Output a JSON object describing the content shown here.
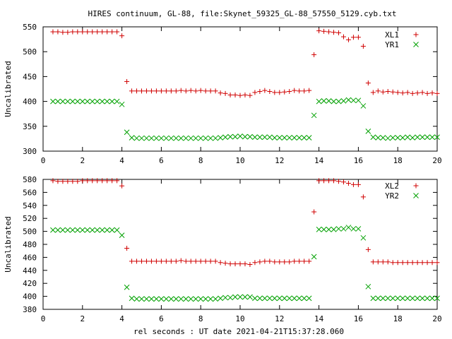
{
  "title": "HIRES continuum, GL-88, file:Skynet_59325_GL-88_57550_5129.cyb.txt",
  "xlabel": "rel seconds : UT date 2021-04-21T15:37:28.060",
  "colors": {
    "red": "#d00000",
    "green": "#00a000"
  },
  "chart_data": [
    {
      "type": "scatter",
      "ylabel": "Uncalibrated",
      "xlim": [
        0,
        20
      ],
      "ylim": [
        300,
        550
      ],
      "xticks": [
        0,
        2,
        4,
        6,
        8,
        10,
        12,
        14,
        16,
        18,
        20
      ],
      "yticks": [
        300,
        350,
        400,
        450,
        500,
        550
      ],
      "legend_position": "top-right",
      "series": [
        {
          "name": "XL1",
          "marker": "plus",
          "color": "#d00000",
          "x": [
            0.5,
            0.75,
            1.0,
            1.25,
            1.5,
            1.75,
            2.0,
            2.25,
            2.5,
            2.75,
            3.0,
            3.25,
            3.5,
            3.75,
            4.0,
            4.25,
            4.5,
            4.75,
            5.0,
            5.25,
            5.5,
            5.75,
            6.0,
            6.25,
            6.5,
            6.75,
            7.0,
            7.25,
            7.5,
            7.75,
            8.0,
            8.25,
            8.5,
            8.75,
            9.0,
            9.25,
            9.5,
            9.75,
            10.0,
            10.25,
            10.5,
            10.75,
            11.0,
            11.25,
            11.5,
            11.75,
            12.0,
            12.25,
            12.5,
            12.75,
            13.0,
            13.25,
            13.5,
            13.75,
            14.0,
            14.25,
            14.5,
            14.75,
            15.0,
            15.25,
            15.5,
            15.75,
            16.0,
            16.25,
            16.5,
            16.75,
            17.0,
            17.25,
            17.5,
            17.75,
            18.0,
            18.25,
            18.5,
            18.75,
            19.0,
            19.25,
            19.5,
            19.75,
            20.0
          ],
          "y": [
            540,
            540,
            539,
            539,
            540,
            540,
            540,
            540,
            540,
            540,
            540,
            540,
            540,
            540,
            532,
            440,
            421,
            421,
            421,
            421,
            421,
            421,
            421,
            421,
            421,
            421,
            422,
            421,
            422,
            421,
            422,
            421,
            421,
            421,
            417,
            416,
            413,
            413,
            412,
            413,
            412,
            418,
            420,
            422,
            420,
            418,
            418,
            419,
            420,
            422,
            421,
            421,
            422,
            494,
            542,
            541,
            540,
            539,
            538,
            530,
            524,
            529,
            529,
            511,
            437,
            418,
            421,
            419,
            420,
            419,
            418,
            417,
            418,
            416,
            417,
            418,
            416,
            417,
            416
          ]
        },
        {
          "name": "YR1",
          "marker": "x",
          "color": "#00a000",
          "x": [
            0.5,
            0.75,
            1.0,
            1.25,
            1.5,
            1.75,
            2.0,
            2.25,
            2.5,
            2.75,
            3.0,
            3.25,
            3.5,
            3.75,
            4.0,
            4.25,
            4.5,
            4.75,
            5.0,
            5.25,
            5.5,
            5.75,
            6.0,
            6.25,
            6.5,
            6.75,
            7.0,
            7.25,
            7.5,
            7.75,
            8.0,
            8.25,
            8.5,
            8.75,
            9.0,
            9.25,
            9.5,
            9.75,
            10.0,
            10.25,
            10.5,
            10.75,
            11.0,
            11.25,
            11.5,
            11.75,
            12.0,
            12.25,
            12.5,
            12.75,
            13.0,
            13.25,
            13.5,
            13.75,
            14.0,
            14.25,
            14.5,
            14.75,
            15.0,
            15.25,
            15.5,
            15.75,
            16.0,
            16.25,
            16.5,
            16.75,
            17.0,
            17.25,
            17.5,
            17.75,
            18.0,
            18.25,
            18.5,
            18.75,
            19.0,
            19.25,
            19.5,
            19.75,
            20.0
          ],
          "y": [
            400,
            400,
            400,
            400,
            400,
            400,
            400,
            400,
            400,
            400,
            400,
            400,
            400,
            400,
            394,
            338,
            327,
            326,
            326,
            326,
            326,
            326,
            326,
            326,
            326,
            326,
            326,
            326,
            326,
            326,
            326,
            326,
            326,
            326,
            327,
            328,
            329,
            329,
            330,
            329,
            329,
            328,
            328,
            328,
            328,
            327,
            327,
            327,
            327,
            327,
            327,
            327,
            327,
            372,
            400,
            401,
            401,
            400,
            400,
            401,
            403,
            402,
            402,
            391,
            340,
            328,
            327,
            327,
            326,
            327,
            327,
            327,
            328,
            327,
            328,
            328,
            328,
            328,
            328
          ]
        }
      ]
    },
    {
      "type": "scatter",
      "ylabel": "Uncalibrated",
      "xlim": [
        0,
        20
      ],
      "ylim": [
        380,
        580
      ],
      "xticks": [
        0,
        2,
        4,
        6,
        8,
        10,
        12,
        14,
        16,
        18,
        20
      ],
      "yticks": [
        380,
        400,
        420,
        440,
        460,
        480,
        500,
        520,
        540,
        560,
        580
      ],
      "legend_position": "top-right",
      "series": [
        {
          "name": "XL2",
          "marker": "plus",
          "color": "#d00000",
          "x": [
            0.5,
            0.75,
            1.0,
            1.25,
            1.5,
            1.75,
            2.0,
            2.25,
            2.5,
            2.75,
            3.0,
            3.25,
            3.5,
            3.75,
            4.0,
            4.25,
            4.5,
            4.75,
            5.0,
            5.25,
            5.5,
            5.75,
            6.0,
            6.25,
            6.5,
            6.75,
            7.0,
            7.25,
            7.5,
            7.75,
            8.0,
            8.25,
            8.5,
            8.75,
            9.0,
            9.25,
            9.5,
            9.75,
            10.0,
            10.25,
            10.5,
            10.75,
            11.0,
            11.25,
            11.5,
            11.75,
            12.0,
            12.25,
            12.5,
            12.75,
            13.0,
            13.25,
            13.5,
            13.75,
            14.0,
            14.25,
            14.5,
            14.75,
            15.0,
            15.25,
            15.5,
            15.75,
            16.0,
            16.25,
            16.5,
            16.75,
            17.0,
            17.25,
            17.5,
            17.75,
            18.0,
            18.25,
            18.5,
            18.75,
            19.0,
            19.25,
            19.5,
            19.75,
            20.0
          ],
          "y": [
            578,
            577,
            577,
            577,
            577,
            577,
            578,
            578,
            578,
            578,
            578,
            578,
            578,
            578,
            570,
            474,
            454,
            454,
            454,
            454,
            454,
            454,
            454,
            454,
            454,
            454,
            455,
            454,
            454,
            454,
            454,
            454,
            454,
            454,
            452,
            451,
            450,
            450,
            450,
            450,
            449,
            452,
            453,
            454,
            454,
            453,
            453,
            453,
            453,
            454,
            454,
            454,
            454,
            530,
            578,
            578,
            578,
            578,
            577,
            576,
            574,
            572,
            572,
            553,
            472,
            453,
            453,
            453,
            453,
            452,
            452,
            452,
            452,
            452,
            452,
            452,
            452,
            452,
            452
          ]
        },
        {
          "name": "YR2",
          "marker": "x",
          "color": "#00a000",
          "x": [
            0.5,
            0.75,
            1.0,
            1.25,
            1.5,
            1.75,
            2.0,
            2.25,
            2.5,
            2.75,
            3.0,
            3.25,
            3.5,
            3.75,
            4.0,
            4.25,
            4.5,
            4.75,
            5.0,
            5.25,
            5.5,
            5.75,
            6.0,
            6.25,
            6.5,
            6.75,
            7.0,
            7.25,
            7.5,
            7.75,
            8.0,
            8.25,
            8.5,
            8.75,
            9.0,
            9.25,
            9.5,
            9.75,
            10.0,
            10.25,
            10.5,
            10.75,
            11.0,
            11.25,
            11.5,
            11.75,
            12.0,
            12.25,
            12.5,
            12.75,
            13.0,
            13.25,
            13.5,
            13.75,
            14.0,
            14.25,
            14.5,
            14.75,
            15.0,
            15.25,
            15.5,
            15.75,
            16.0,
            16.25,
            16.5,
            16.75,
            17.0,
            17.25,
            17.5,
            17.75,
            18.0,
            18.25,
            18.5,
            18.75,
            19.0,
            19.25,
            19.5,
            19.75,
            20.0
          ],
          "y": [
            502,
            502,
            502,
            502,
            502,
            502,
            502,
            502,
            502,
            502,
            502,
            502,
            502,
            502,
            494,
            414,
            397,
            396,
            396,
            396,
            396,
            396,
            396,
            396,
            396,
            396,
            396,
            396,
            396,
            396,
            396,
            396,
            396,
            396,
            397,
            398,
            398,
            399,
            399,
            399,
            399,
            397,
            397,
            397,
            397,
            397,
            397,
            397,
            397,
            397,
            397,
            397,
            397,
            461,
            503,
            503,
            503,
            503,
            504,
            504,
            506,
            504,
            504,
            490,
            415,
            397,
            397,
            397,
            397,
            397,
            397,
            397,
            397,
            397,
            397,
            397,
            397,
            397,
            397
          ]
        }
      ]
    }
  ]
}
